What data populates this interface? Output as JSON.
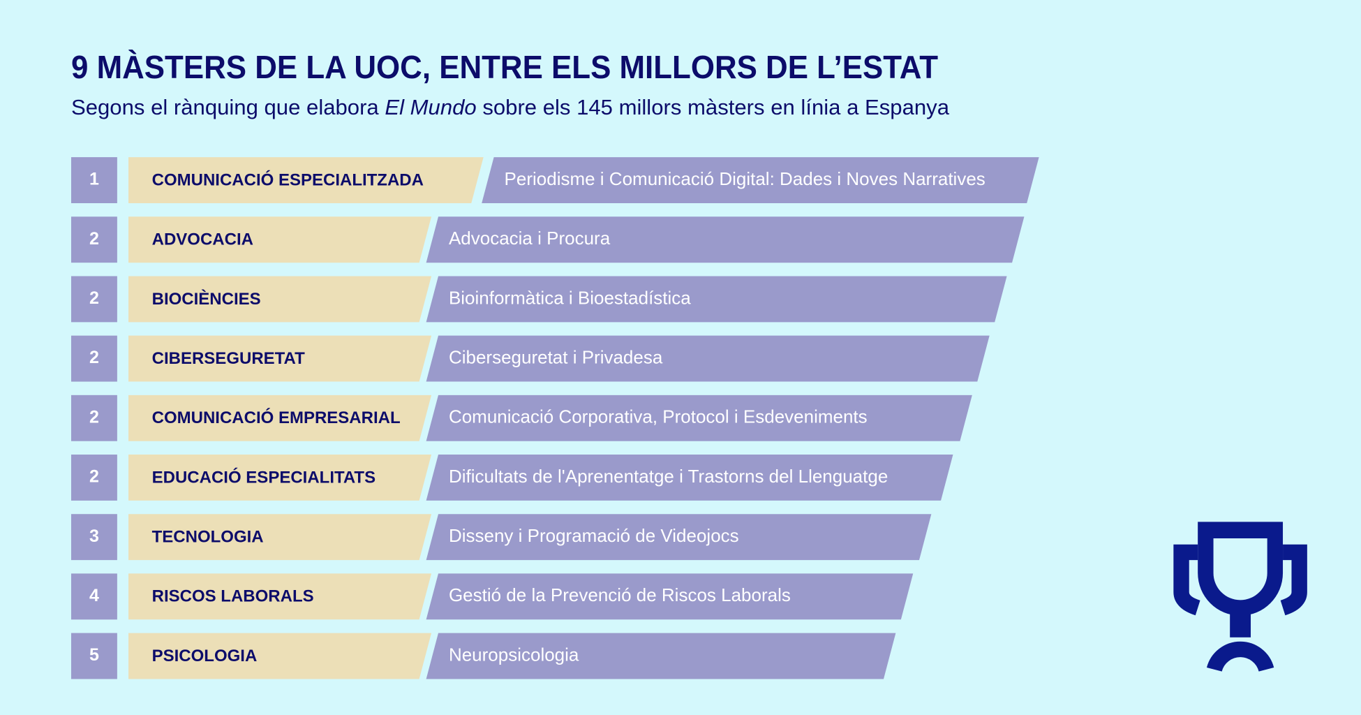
{
  "header": {
    "title": "9 MÀSTERS DE LA UOC, ENTRE ELS MILLORS DE L’ESTAT",
    "subtitle": {
      "before": "Segons el rànquing que elabora ",
      "emphasis": "El Mundo",
      "after": " sobre els 145 millors màsters en línia a Espanya"
    }
  },
  "rows": [
    {
      "rank": "1",
      "area": "COMUNICACIÓ ESPECIALITZADA",
      "master": "Periodisme i Comunicació Digital: Dades i Noves Narratives"
    },
    {
      "rank": "2",
      "area": "ADVOCACIA",
      "master": "Advocacia i Procura"
    },
    {
      "rank": "2",
      "area": "BIOCIÈNCIES",
      "master": "Bioinformàtica i Bioestadística"
    },
    {
      "rank": "2",
      "area": "CIBERSEGURETAT",
      "master": "Ciberseguretat i Privadesa"
    },
    {
      "rank": "2",
      "area": "COMUNICACIÓ EMPRESARIAL",
      "master": "Comunicació Corporativa, Protocol i Esdeveniments"
    },
    {
      "rank": "2",
      "area": "EDUCACIÓ ESPECIALITATS",
      "master": "Dificultats de l'Aprenentatge i Trastorns del Llenguatge"
    },
    {
      "rank": "3",
      "area": "TECNOLOGIA",
      "master": "Disseny i Programació de Videojocs"
    },
    {
      "rank": "4",
      "area": "RISCOS LABORALS",
      "master": "Gestió de la Prevenció de Riscos Laborals"
    },
    {
      "rank": "5",
      "area": "PSICOLOGIA",
      "master": "Neuropsicologia"
    }
  ]
}
